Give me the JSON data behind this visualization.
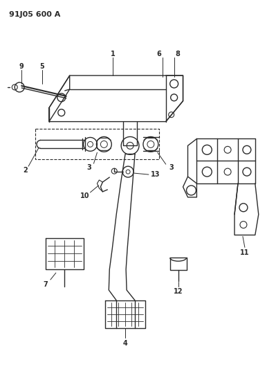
{
  "title": "91J05 600 A",
  "bg_color": "#ffffff",
  "line_color": "#2a2a2a",
  "title_fontsize": 8,
  "label_fontsize": 7,
  "fig_width": 3.99,
  "fig_height": 5.33,
  "dpi": 100
}
